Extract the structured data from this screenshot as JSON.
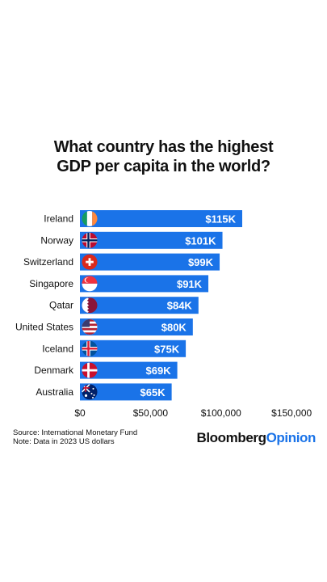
{
  "title": {
    "line1": "What country has the highest",
    "line2": "GDP per capita in the world?"
  },
  "chart_data": {
    "type": "bar",
    "orientation": "horizontal",
    "categories": [
      "Ireland",
      "Norway",
      "Switzerland",
      "Singapore",
      "Qatar",
      "United States",
      "Iceland",
      "Denmark",
      "Australia"
    ],
    "values": [
      115,
      101,
      99,
      91,
      84,
      80,
      75,
      69,
      65
    ],
    "value_labels": [
      "$115K",
      "$101K",
      "$99K",
      "$91K",
      "$84K",
      "$80K",
      "$75K",
      "$69K",
      "$65K"
    ],
    "flag_icons": [
      "ireland-flag-icon",
      "norway-flag-icon",
      "switzerland-flag-icon",
      "singapore-flag-icon",
      "qatar-flag-icon",
      "united-states-flag-icon",
      "iceland-flag-icon",
      "denmark-flag-icon",
      "australia-flag-icon"
    ],
    "x_ticks": [
      0,
      50,
      100,
      150
    ],
    "x_tick_labels": [
      "$0",
      "$50,000",
      "$100,000",
      "$150,000"
    ],
    "xlim": [
      0,
      150
    ],
    "bar_color": "#1a73e8",
    "grid": false
  },
  "footer": {
    "source": "Source: International Monetary Fund",
    "note": "Note: Data in 2023 US dollars"
  },
  "brand": {
    "part1": "Bloomberg",
    "part2": "Opinion"
  }
}
